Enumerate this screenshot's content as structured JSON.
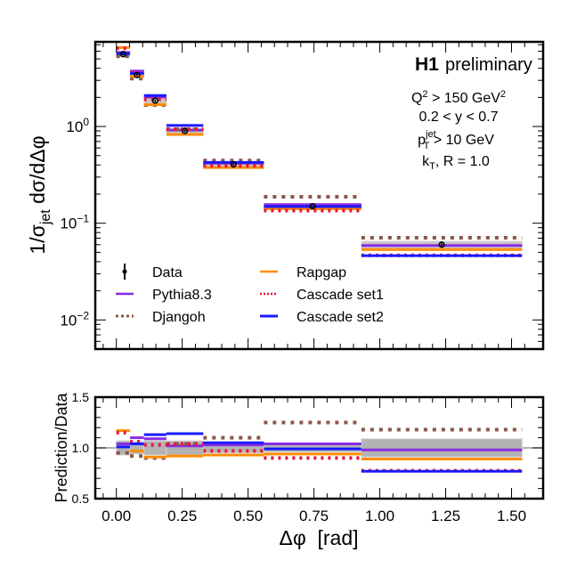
{
  "chart_data": [
    {
      "type": "line",
      "panel": "main",
      "title": "",
      "xlabel": "",
      "ylabel": "1/σ_jet dσ/dΔφ",
      "ylabel_parts": {
        "pre": "1/σ",
        "sub": "jet",
        "post": " dσ/dΔφ"
      },
      "yscale": "log",
      "ylim": [
        0.005,
        7.5
      ],
      "xlim": [
        -0.08,
        1.62
      ],
      "y_ticks": [
        {
          "value": 1,
          "base": "10",
          "exp": "0"
        },
        {
          "value": 0.1,
          "base": "10",
          "exp": "−1"
        },
        {
          "value": 0.01,
          "base": "10",
          "exp": "−2"
        }
      ],
      "annotations": {
        "experiment": "H1",
        "status": "preliminary",
        "cuts": [
          {
            "pre": "Q",
            "sup": "2",
            "mid": " > 150 GeV",
            "sup2": "2"
          },
          {
            "text": "0.2 < y < 0.7"
          },
          {
            "pre": "p",
            "sup": "jet",
            "sub": "T",
            "post": " > 10 GeV"
          },
          {
            "pre": "k",
            "sub": "T",
            "post": ", R = 1.0"
          }
        ]
      },
      "legend": {
        "placement": "lower-left",
        "entries": [
          "Data",
          "Pythia8.3",
          "Djangoh",
          "Rapgap",
          "Cascade set1",
          "Cascade set2"
        ]
      },
      "bin_edges": [
        0.0,
        0.052,
        0.105,
        0.19,
        0.33,
        0.56,
        0.93,
        1.54
      ],
      "data": {
        "name": "Data",
        "values": [
          5.6,
          3.4,
          1.85,
          0.9,
          0.405,
          0.15,
          0.06
        ],
        "rel_uncertainty": [
          0.07,
          0.06,
          0.07,
          0.07,
          0.05,
          0.04,
          0.09
        ]
      }
    },
    {
      "type": "line",
      "panel": "ratio",
      "xlabel": "Δφ  [rad]",
      "ylabel": "Prediction/Data",
      "ylim": [
        0.5,
        1.5
      ],
      "xlim": [
        -0.08,
        1.62
      ],
      "y_ticks": [
        "0.5",
        "1.0",
        "1.5"
      ],
      "x_ticks": [
        "0.00",
        "0.25",
        "0.50",
        "0.75",
        "1.00",
        "1.25",
        "1.50"
      ],
      "x_tick_values": [
        0,
        0.25,
        0.5,
        0.75,
        1.0,
        1.25,
        1.5
      ],
      "bin_edges": [
        0.0,
        0.052,
        0.105,
        0.19,
        0.33,
        0.56,
        0.93,
        1.54
      ],
      "series": [
        {
          "name": "Pythia8.3",
          "color": "#8a2be2",
          "style": "solid",
          "values": [
            1.04,
            1.1,
            1.09,
            1.02,
            1.03,
            1.04,
            0.98
          ]
        },
        {
          "name": "Djangoh",
          "color": "#8c564b",
          "style": "dotted",
          "values": [
            0.95,
            0.92,
            0.9,
            1.04,
            1.1,
            1.25,
            1.18
          ]
        },
        {
          "name": "Rapgap",
          "color": "#ff8c00",
          "style": "solid",
          "values": [
            1.17,
            0.97,
            0.91,
            0.92,
            0.93,
            0.94,
            0.89
          ]
        },
        {
          "name": "Cascade set1",
          "color": "#e8173b",
          "style": "dotted",
          "values": [
            1.15,
            1.06,
            1.03,
            1.04,
            0.97,
            0.9,
            0.775
          ]
        },
        {
          "name": "Cascade set2",
          "color": "#1a1aff",
          "style": "solid",
          "values": [
            1.01,
            1.04,
            1.13,
            1.14,
            1.05,
            0.99,
            0.77
          ]
        }
      ]
    }
  ]
}
